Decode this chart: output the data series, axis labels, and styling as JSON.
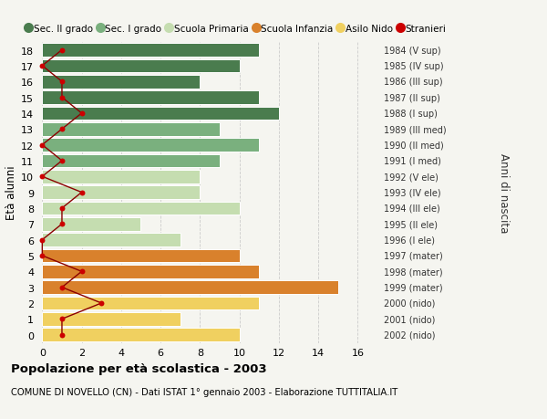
{
  "ages": [
    18,
    17,
    16,
    15,
    14,
    13,
    12,
    11,
    10,
    9,
    8,
    7,
    6,
    5,
    4,
    3,
    2,
    1,
    0
  ],
  "anni_nascita": [
    "1984 (V sup)",
    "1985 (IV sup)",
    "1986 (III sup)",
    "1987 (II sup)",
    "1988 (I sup)",
    "1989 (III med)",
    "1990 (II med)",
    "1991 (I med)",
    "1992 (V ele)",
    "1993 (IV ele)",
    "1994 (III ele)",
    "1995 (II ele)",
    "1996 (I ele)",
    "1997 (mater)",
    "1998 (mater)",
    "1999 (mater)",
    "2000 (nido)",
    "2001 (nido)",
    "2002 (nido)"
  ],
  "bar_values": [
    11,
    10,
    8,
    11,
    12,
    9,
    11,
    9,
    8,
    8,
    10,
    5,
    7,
    10,
    11,
    15,
    11,
    7,
    10
  ],
  "bar_colors": [
    "#4a7c4e",
    "#4a7c4e",
    "#4a7c4e",
    "#4a7c4e",
    "#4a7c4e",
    "#7ab07e",
    "#7ab07e",
    "#7ab07e",
    "#c5ddb0",
    "#c5ddb0",
    "#c5ddb0",
    "#c5ddb0",
    "#c5ddb0",
    "#d9812c",
    "#d9812c",
    "#d9812c",
    "#f0d060",
    "#f0d060",
    "#f0d060"
  ],
  "stranieri_values": [
    1,
    0,
    1,
    1,
    2,
    1,
    0,
    1,
    0,
    2,
    1,
    1,
    0,
    0,
    2,
    1,
    3,
    1,
    1
  ],
  "legend_labels": [
    "Sec. II grado",
    "Sec. I grado",
    "Scuola Primaria",
    "Scuola Infanzia",
    "Asilo Nido",
    "Stranieri"
  ],
  "legend_colors": [
    "#4a7c4e",
    "#7ab07e",
    "#c5ddb0",
    "#d9812c",
    "#f0d060",
    "#cc0000"
  ],
  "ylabel_left": "Età alunni",
  "ylabel_right": "Anni di nascita",
  "title_bold": "Popolazione per età scolastica - 2003",
  "subtitle": "COMUNE DI NOVELLO (CN) - Dati ISTAT 1° gennaio 2003 - Elaborazione TUTTITALIA.IT",
  "xlim_max": 17,
  "background_color": "#f5f5f0",
  "grid_color": "#cccccc",
  "stranieri_line_color": "#8b0000",
  "stranieri_dot_color": "#cc0000"
}
